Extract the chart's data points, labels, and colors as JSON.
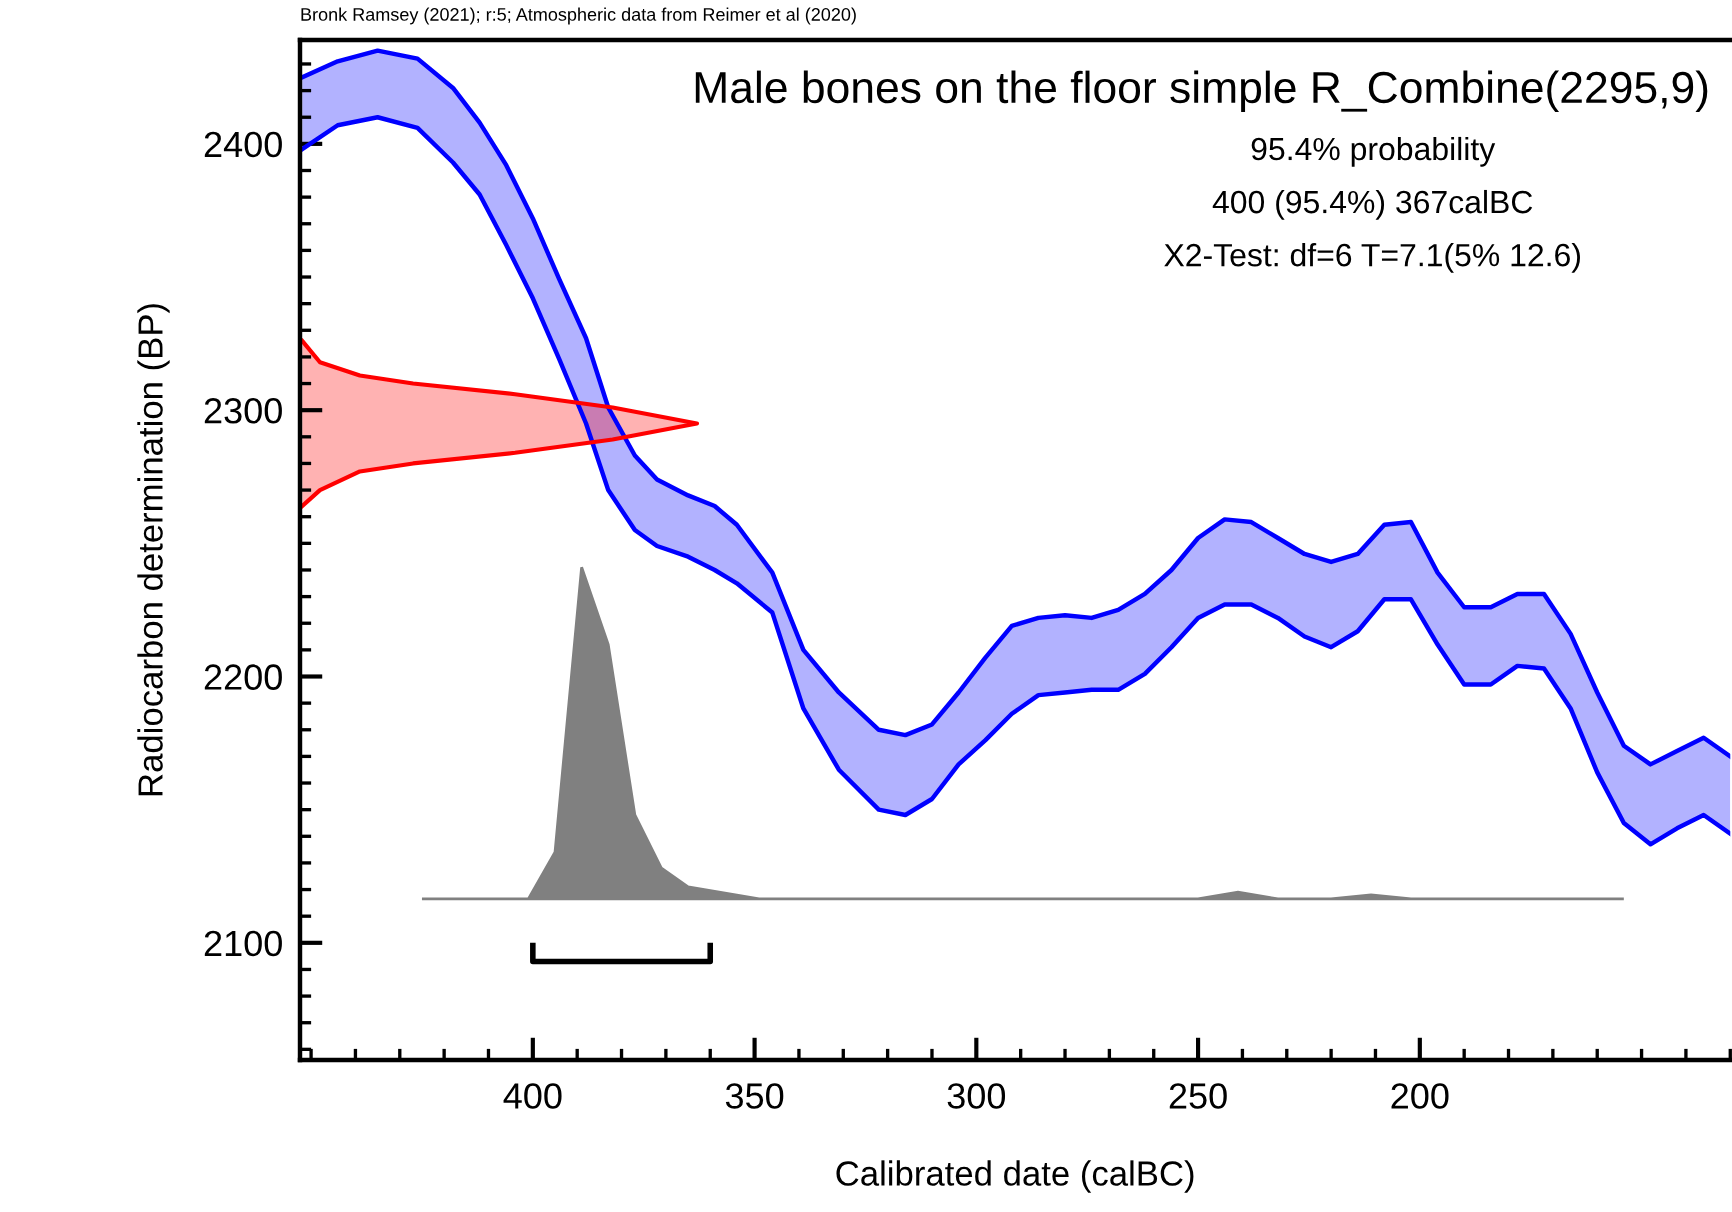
{
  "chart_data": {
    "type": "area",
    "title": "Male bones on the floor simple R_Combine(2295,9)",
    "xlabel": "Calibrated date (calBC)",
    "ylabel": "Radiocarbon determination (BP)",
    "annotations": [
      "Bronk Ramsey (2021); r:5; Atmospheric data from Reimer et al (2020)",
      "95.4% probability",
      "400 (95.4%) 367calBC",
      "X2-Test: df=6 T=7.1(5% 12.6)"
    ],
    "xlim": [
      452.5,
      130
    ],
    "xticks": [
      400,
      350,
      300,
      250,
      200
    ],
    "ylim": [
      2056,
      2439
    ],
    "yticks": [
      2100,
      2200,
      2300,
      2400
    ],
    "grid": false,
    "legend": false,
    "series": [
      {
        "color": "#0000ff",
        "x": [
          452,
          444,
          435,
          426,
          418,
          412,
          406,
          400,
          394,
          388,
          383,
          377,
          372,
          365,
          359,
          354,
          346,
          339,
          331,
          322,
          316,
          310,
          304,
          298,
          292,
          286,
          280,
          274,
          268,
          262,
          256,
          250,
          244,
          238,
          232,
          226,
          220,
          214,
          208,
          202,
          196,
          190,
          184,
          178,
          172,
          166,
          160,
          154,
          148,
          142,
          136,
          130
        ],
        "values": [
          2425,
          2431,
          2435,
          2432,
          2421,
          2408,
          2392,
          2372,
          2349,
          2327,
          2301,
          2283,
          2274,
          2268,
          2264,
          2257,
          2239,
          2210,
          2194,
          2180,
          2178,
          2182,
          2194,
          2207,
          2219,
          2222,
          2223,
          2222,
          2225,
          2231,
          2240,
          2252,
          2259,
          2258,
          2252,
          2246,
          2243,
          2246,
          2257,
          2258,
          2239,
          2226,
          2226,
          2231,
          2231,
          2216,
          2194,
          2174,
          2167,
          2172,
          2177,
          2170
        ]
      },
      {
        "type": "line",
        "color": "#0000ff",
        "x": [
          452,
          444,
          435,
          426,
          418,
          412,
          406,
          400,
          394,
          388,
          383,
          377,
          372,
          365,
          359,
          354,
          346,
          339,
          331,
          322,
          316,
          310,
          304,
          298,
          292,
          286,
          280,
          274,
          268,
          262,
          256,
          250,
          244,
          238,
          232,
          226,
          220,
          214,
          208,
          202,
          196,
          190,
          184,
          178,
          172,
          166,
          160,
          154,
          148,
          142,
          136,
          130
        ],
        "values": [
          2398,
          2407,
          2410,
          2406,
          2393,
          2381,
          2362,
          2342,
          2319,
          2295,
          2270,
          2255,
          2249,
          2245,
          2240,
          2235,
          2224,
          2188,
          2165,
          2150,
          2148,
          2154,
          2167,
          2176,
          2186,
          2193,
          2194,
          2195,
          2195,
          2201,
          2211,
          2222,
          2227,
          2227,
          2222,
          2215,
          2211,
          2217,
          2229,
          2229,
          2212,
          2197,
          2197,
          2204,
          2203,
          2188,
          2164,
          2145,
          2137,
          2143,
          2148,
          2141
        ]
      },
      {
        "color": "#ff0000",
        "x": [
          452,
          448,
          439,
          427,
          404,
          382,
          363,
          382,
          404,
          427,
          439,
          448,
          452
        ],
        "values": [
          2326,
          2318,
          2313,
          2310,
          2306,
          2301,
          2295,
          2289,
          2284,
          2280,
          2277,
          2270,
          2264
        ]
      },
      {
        "color": "#808080",
        "x": [
          425,
          401,
          395,
          389,
          383,
          377,
          371,
          365,
          358,
          349,
          250,
          241,
          232,
          220,
          211,
          202,
          154
        ],
        "values": [
          2116.5,
          2116.5,
          2134,
          2241,
          2212,
          2148,
          2128,
          2121,
          2119,
          2116.5,
          2116.5,
          2119,
          2116.5,
          2116.5,
          2118,
          2116.5,
          2116.5
        ]
      },
      {
        "type": "line",
        "color": "#000000",
        "x": [
          400,
          400,
          360,
          360
        ],
        "values": [
          2099,
          2093,
          2093,
          2099
        ]
      }
    ]
  }
}
